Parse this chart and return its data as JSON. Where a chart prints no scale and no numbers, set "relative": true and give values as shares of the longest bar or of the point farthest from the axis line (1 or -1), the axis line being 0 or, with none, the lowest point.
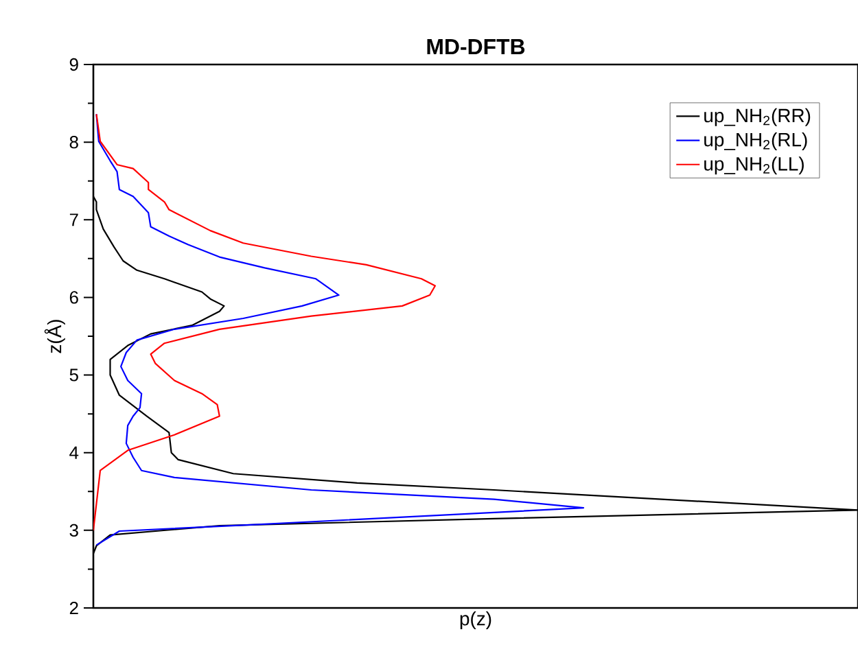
{
  "chart_data": {
    "type": "line",
    "orientation": "horizontal",
    "title": "MD-DFTB",
    "xlabel": "p(z)",
    "ylabel": "z(Å)",
    "relative": true,
    "ylim": [
      2,
      9
    ],
    "yticks": [
      2,
      3,
      4,
      5,
      6,
      7,
      8,
      9
    ],
    "legend": "top right",
    "marker": "none",
    "line_style": "solid",
    "series": [
      {
        "name": "up_NH$_{2}$(RR)",
        "color": "#000000",
        "values": [
          0,
          0.004,
          0.022,
          0.165,
          0.524,
          1,
          0.524,
          0.345,
          0.183,
          0.111,
          0.102,
          0.099,
          0.07,
          0.034,
          0.022,
          0.022,
          0.045,
          0.075,
          0.129,
          0.165,
          0.171,
          0.153,
          0.142,
          0.093,
          0.057,
          0.039,
          0.027,
          0.013,
          0.004,
          0.004,
          0
        ],
        "x": [
          2.7,
          2.8,
          2.94,
          3.06,
          3.15,
          3.26,
          3.52,
          3.61,
          3.73,
          3.91,
          4.0,
          4.26,
          4.47,
          4.74,
          5.0,
          5.2,
          5.38,
          5.53,
          5.64,
          5.82,
          5.89,
          5.98,
          6.07,
          6.24,
          6.35,
          6.47,
          6.65,
          6.88,
          7.13,
          7.23,
          7.3
        ]
      },
      {
        "name": "up_NH$_{2}$(RL)",
        "color": "#0000ff",
        "values": [
          0.004,
          0.034,
          0.224,
          0.524,
          0.641,
          0.524,
          0.285,
          0.106,
          0.063,
          0.052,
          0.043,
          0.045,
          0.052,
          0.061,
          0.063,
          0.045,
          0.036,
          0.043,
          0.057,
          0.106,
          0.196,
          0.273,
          0.321,
          0.291,
          0.224,
          0.165,
          0.124,
          0.099,
          0.075,
          0.072,
          0.052,
          0.034,
          0.031,
          0.022,
          0.007,
          0.004
        ],
        "x": [
          2.81,
          2.99,
          3.08,
          3.23,
          3.29,
          3.4,
          3.52,
          3.68,
          3.77,
          3.94,
          4.12,
          4.35,
          4.47,
          4.58,
          4.76,
          4.93,
          5.11,
          5.29,
          5.45,
          5.59,
          5.73,
          5.89,
          6.03,
          6.24,
          6.38,
          6.52,
          6.68,
          6.79,
          6.91,
          7.09,
          7.3,
          7.39,
          7.62,
          7.76,
          8.01,
          8.36
        ]
      },
      {
        "name": "up_NH$_{2}$(LL)",
        "color": "#ff0000",
        "values": [
          0,
          0.004,
          0.009,
          0.045,
          0.106,
          0.165,
          0.162,
          0.142,
          0.106,
          0.081,
          0.075,
          0.093,
          0.165,
          0.285,
          0.404,
          0.44,
          0.447,
          0.429,
          0.357,
          0.285,
          0.196,
          0.153,
          0.099,
          0.093,
          0.072,
          0.072,
          0.052,
          0.031,
          0.009,
          0.004
        ],
        "x": [
          3.0,
          3.34,
          3.77,
          4.03,
          4.23,
          4.47,
          4.62,
          4.76,
          4.93,
          5.15,
          5.27,
          5.41,
          5.59,
          5.76,
          5.89,
          6.03,
          6.15,
          6.24,
          6.42,
          6.53,
          6.7,
          6.86,
          7.13,
          7.23,
          7.39,
          7.48,
          7.66,
          7.71,
          8.01,
          8.36
        ]
      }
    ]
  }
}
